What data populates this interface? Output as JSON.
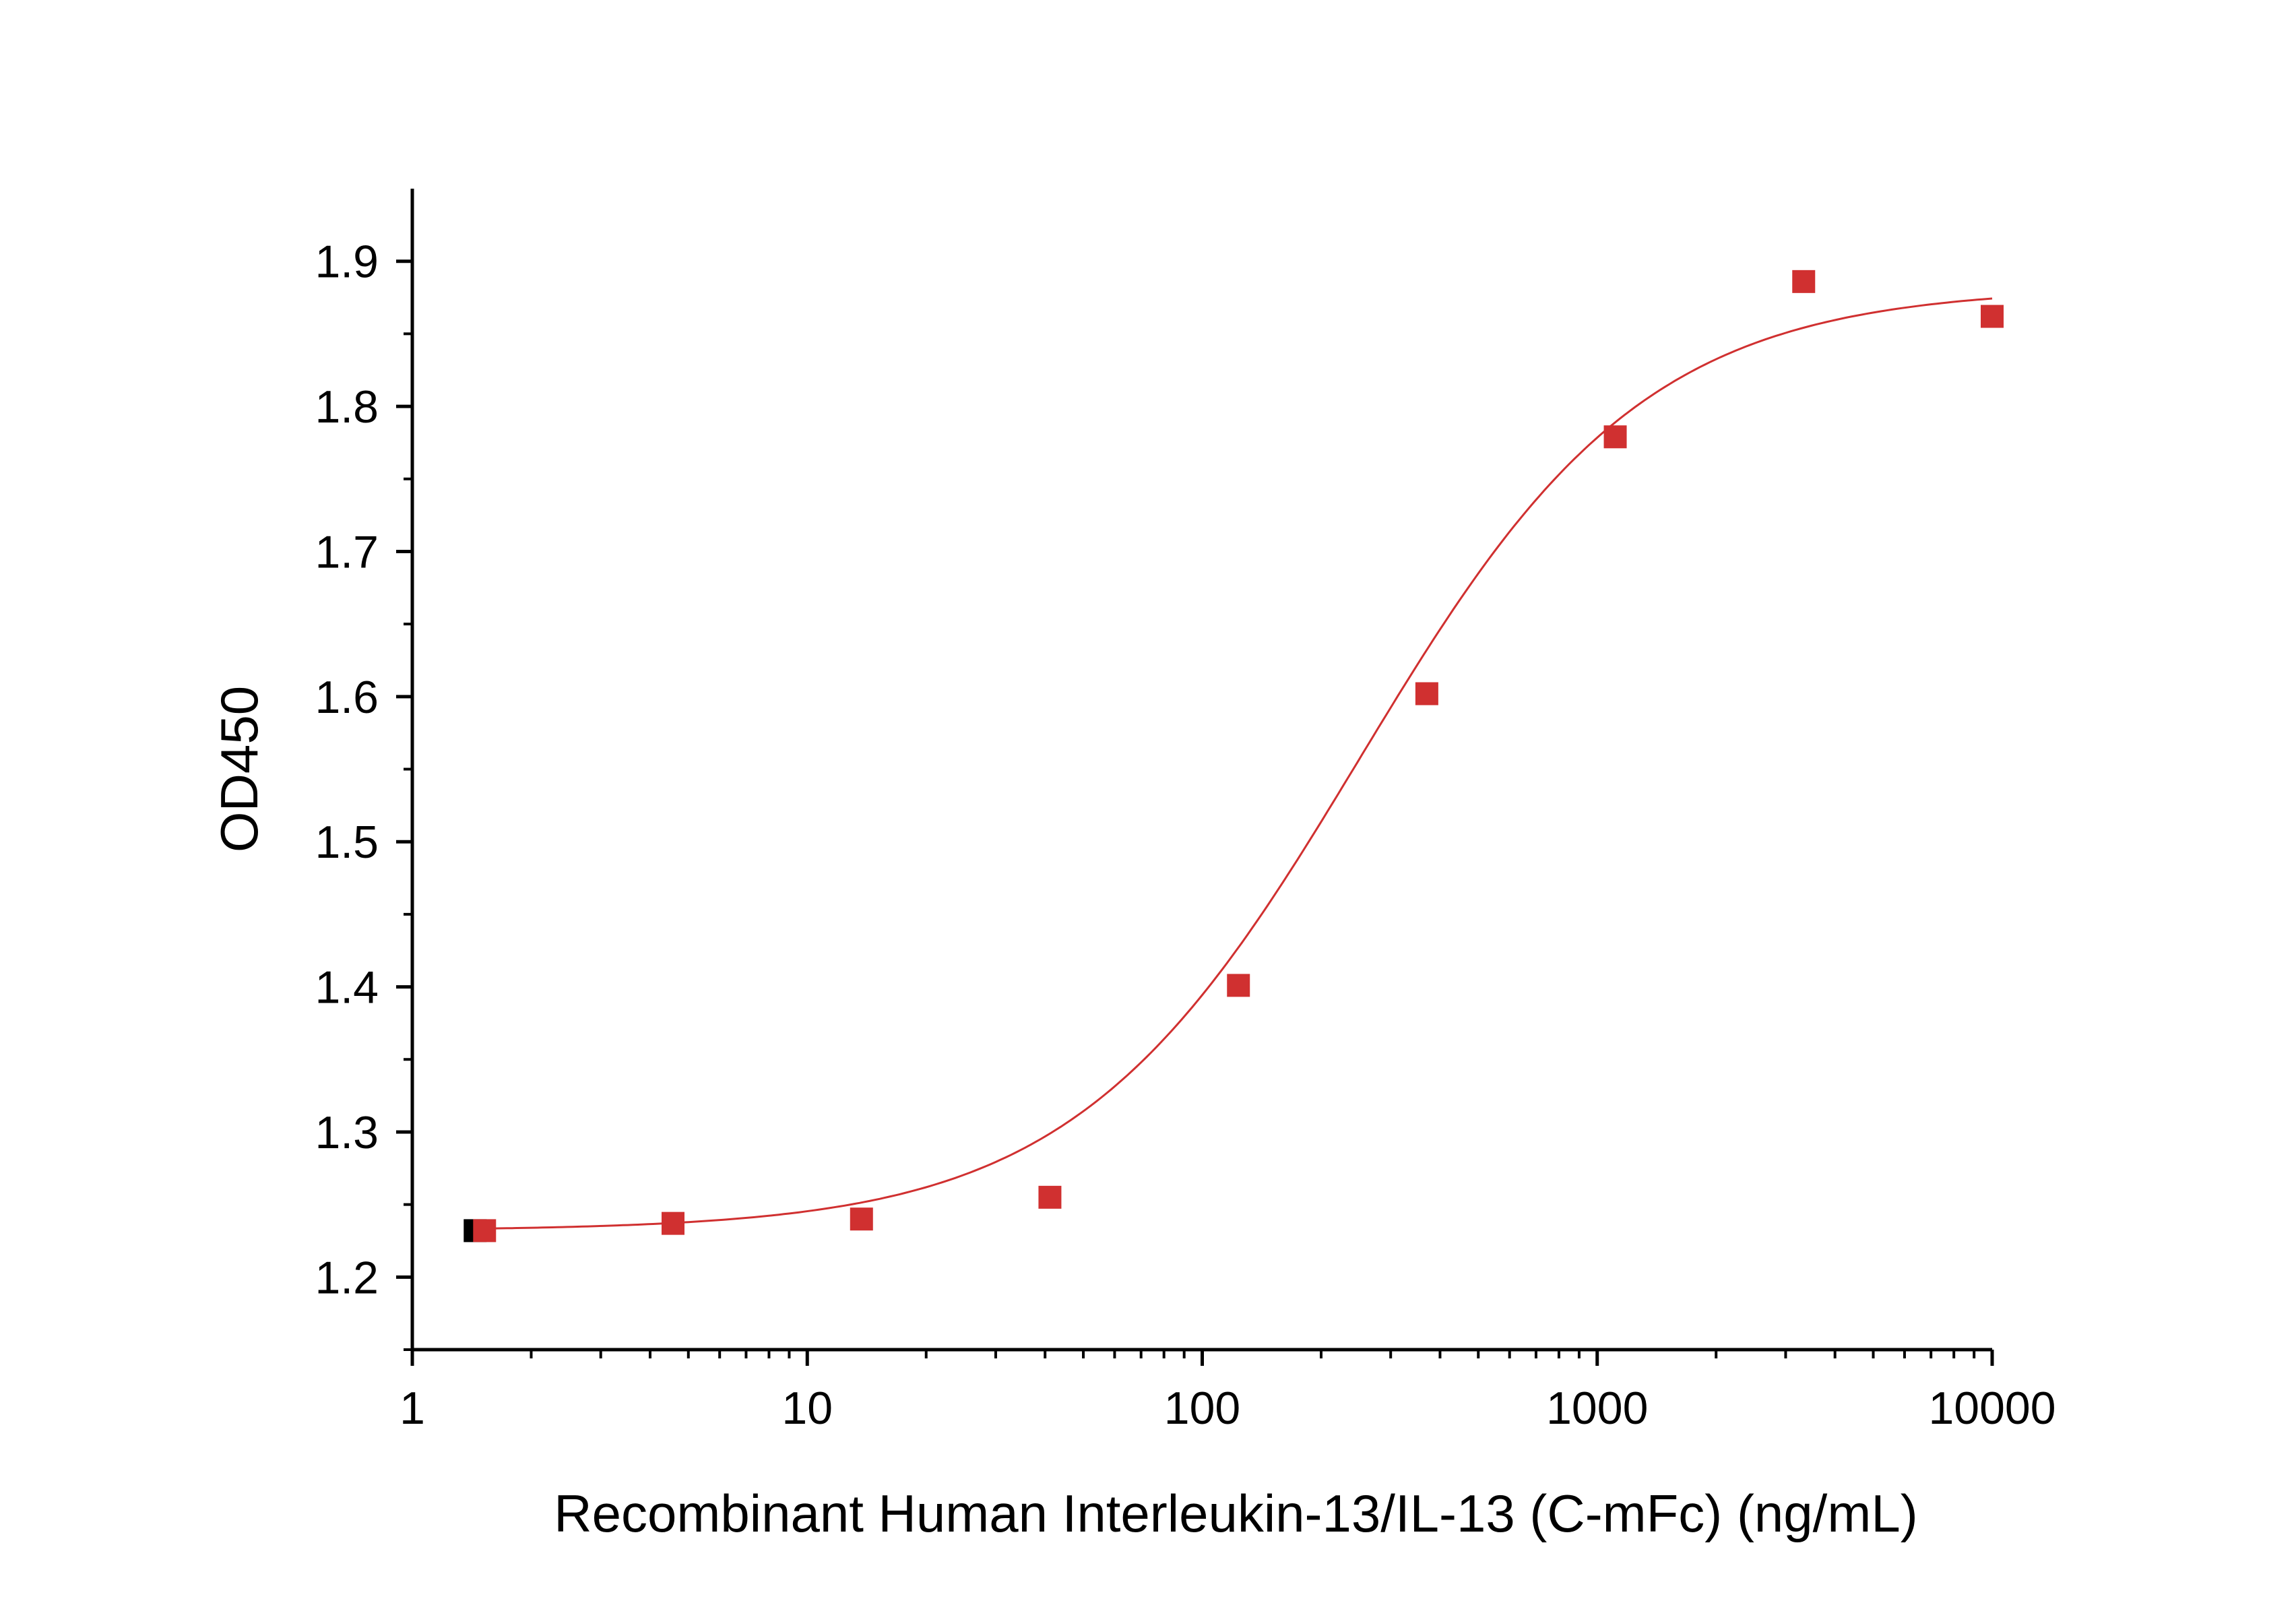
{
  "chart_data": {
    "type": "scatter",
    "title": "",
    "xlabel": "Recombinant Human Interleukin-13/IL-13 (C-mFc) (ng/mL)",
    "ylabel": "OD450",
    "x_scale": "log",
    "xlim": [
      1,
      10000
    ],
    "ylim": [
      1.15,
      1.95
    ],
    "x_ticks": [
      1,
      10,
      100,
      1000,
      10000
    ],
    "x_tick_labels": [
      "1",
      "10",
      "100",
      "1000",
      "10000"
    ],
    "y_ticks": [
      1.2,
      1.3,
      1.4,
      1.5,
      1.6,
      1.7,
      1.8,
      1.9
    ],
    "y_tick_labels": [
      "1.2",
      "1.3",
      "1.4",
      "1.5",
      "1.6",
      "1.7",
      "1.8",
      "1.9"
    ],
    "grid": false,
    "series": [
      {
        "values": [
          {
            "x": 1.524,
            "y": 1.232
          },
          {
            "x": 4.572,
            "y": 1.237
          },
          {
            "x": 13.72,
            "y": 1.24
          },
          {
            "x": 41.15,
            "y": 1.255
          },
          {
            "x": 123.5,
            "y": 1.401
          },
          {
            "x": 370.4,
            "y": 1.602
          },
          {
            "x": 1111,
            "y": 1.779
          },
          {
            "x": 3333,
            "y": 1.886
          },
          {
            "x": 10000,
            "y": 1.862
          }
        ],
        "color": "#d03030",
        "marker": "square"
      }
    ],
    "fit_curve": {
      "model": "4-parameter logistic",
      "bottom": 1.232,
      "top": 1.882,
      "ec50": 250,
      "hill": 1.2,
      "x_range": [
        1.5,
        10000
      ],
      "color": "#d03030"
    },
    "origin_marker_color": "#000000"
  }
}
